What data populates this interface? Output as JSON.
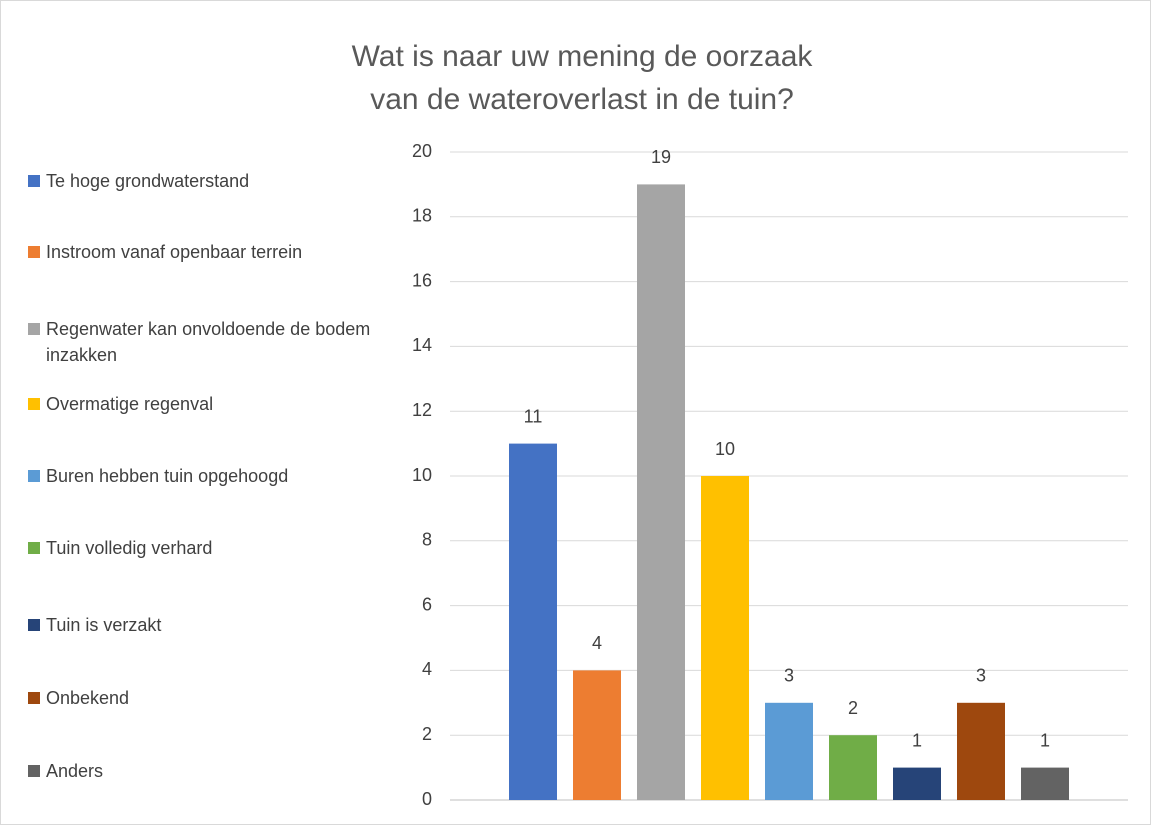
{
  "chart_data": {
    "type": "bar",
    "title": [
      "Wat is naar uw mening de oorzaak",
      "van de wateroverlast in de tuin?"
    ],
    "series": [
      {
        "name": "Te hoge grondwaterstand",
        "color": "#4472c4",
        "values": [
          11
        ]
      },
      {
        "name": "Instroom vanaf openbaar terrein",
        "color": "#ed7d31",
        "values": [
          4
        ]
      },
      {
        "name": "Regenwater kan onvoldoende de bodem inzakken",
        "color": "#a5a5a5",
        "values": [
          19
        ]
      },
      {
        "name": "Overmatige regenval",
        "color": "#ffc000",
        "values": [
          10
        ]
      },
      {
        "name": "Buren hebben tuin opgehoogd",
        "color": "#5b9bd5",
        "values": [
          3
        ]
      },
      {
        "name": "Tuin volledig verhard",
        "color": "#70ad47",
        "values": [
          2
        ]
      },
      {
        "name": "Tuin is verzakt",
        "color": "#264478",
        "values": [
          1
        ]
      },
      {
        "name": "Onbekend",
        "color": "#9e480e",
        "values": [
          3
        ]
      },
      {
        "name": "Anders",
        "color": "#636363",
        "values": [
          1
        ]
      }
    ],
    "ylim": [
      0,
      20
    ],
    "yticks": [
      0,
      2,
      4,
      6,
      8,
      10,
      12,
      14,
      16,
      18,
      20
    ],
    "grid": true,
    "legend": "left"
  }
}
